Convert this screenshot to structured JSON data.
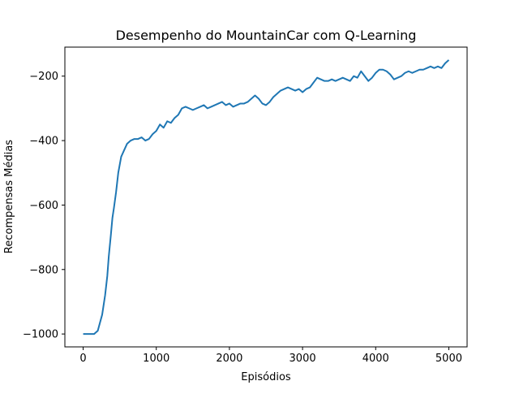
{
  "chart_data": {
    "type": "line",
    "title": "Desempenho do MountainCar com Q-Learning",
    "xlabel": "Episódios",
    "ylabel": "Recompensas Médias",
    "xlim": [
      -250,
      5250
    ],
    "ylim": [
      -1040,
      -110
    ],
    "xticks": [
      {
        "value": 0,
        "label": "0"
      },
      {
        "value": 1000,
        "label": "1000"
      },
      {
        "value": 2000,
        "label": "2000"
      },
      {
        "value": 3000,
        "label": "3000"
      },
      {
        "value": 4000,
        "label": "4000"
      },
      {
        "value": 5000,
        "label": "5000"
      }
    ],
    "yticks": [
      {
        "value": -1000,
        "label": "−1000"
      },
      {
        "value": -800,
        "label": "−800"
      },
      {
        "value": -600,
        "label": "−600"
      },
      {
        "value": -400,
        "label": "−400"
      },
      {
        "value": -200,
        "label": "−200"
      }
    ],
    "grid": false,
    "series": [
      {
        "color": "#1f77b4",
        "x": [
          0,
          150,
          200,
          260,
          300,
          330,
          350,
          380,
          400,
          420,
          450,
          480,
          520,
          560,
          600,
          650,
          700,
          750,
          800,
          850,
          900,
          950,
          1000,
          1050,
          1100,
          1150,
          1200,
          1250,
          1300,
          1350,
          1400,
          1450,
          1500,
          1550,
          1600,
          1650,
          1700,
          1750,
          1800,
          1850,
          1900,
          1950,
          2000,
          2050,
          2100,
          2150,
          2200,
          2250,
          2300,
          2350,
          2400,
          2450,
          2500,
          2550,
          2600,
          2650,
          2700,
          2750,
          2800,
          2850,
          2900,
          2950,
          3000,
          3050,
          3100,
          3150,
          3200,
          3250,
          3300,
          3350,
          3400,
          3450,
          3500,
          3550,
          3600,
          3650,
          3700,
          3750,
          3800,
          3850,
          3900,
          3950,
          4000,
          4050,
          4100,
          4150,
          4200,
          4250,
          4300,
          4350,
          4400,
          4450,
          4500,
          4550,
          4600,
          4650,
          4700,
          4750,
          4800,
          4850,
          4900,
          4950,
          5000
        ],
        "y": [
          -1000,
          -1000,
          -990,
          -940,
          -880,
          -820,
          -760,
          -690,
          -640,
          -610,
          -560,
          -500,
          -450,
          -430,
          -410,
          -400,
          -395,
          -395,
          -390,
          -400,
          -395,
          -380,
          -370,
          -350,
          -360,
          -340,
          -345,
          -330,
          -320,
          -300,
          -295,
          -300,
          -305,
          -300,
          -295,
          -290,
          -300,
          -295,
          -290,
          -285,
          -280,
          -290,
          -285,
          -295,
          -290,
          -285,
          -285,
          -280,
          -270,
          -260,
          -270,
          -285,
          -290,
          -280,
          -265,
          -255,
          -245,
          -240,
          -235,
          -240,
          -245,
          -240,
          -250,
          -240,
          -235,
          -220,
          -205,
          -210,
          -215,
          -215,
          -210,
          -215,
          -210,
          -205,
          -210,
          -215,
          -200,
          -205,
          -185,
          -200,
          -215,
          -205,
          -190,
          -180,
          -180,
          -185,
          -195,
          -210,
          -205,
          -200,
          -190,
          -185,
          -190,
          -185,
          -180,
          -180,
          -175,
          -170,
          -175,
          -170,
          -175,
          -160,
          -150
        ]
      }
    ]
  }
}
